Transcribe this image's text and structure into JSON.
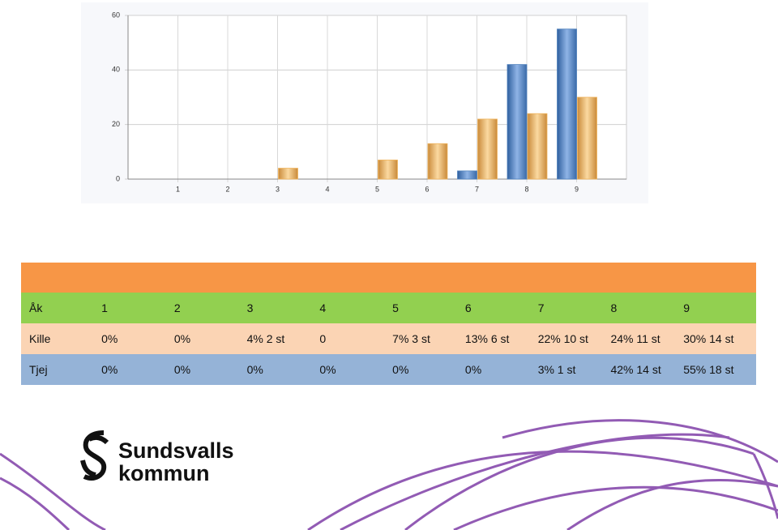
{
  "chart_data": {
    "type": "bar",
    "categories": [
      "1",
      "2",
      "3",
      "4",
      "5",
      "6",
      "7",
      "8",
      "9"
    ],
    "series": [
      {
        "color": "#4f81bd",
        "values": [
          0,
          0,
          0,
          0,
          0,
          0,
          3,
          42,
          55
        ]
      },
      {
        "color": "#f0b45c",
        "values": [
          0,
          0,
          4,
          0,
          7,
          13,
          22,
          24,
          30
        ]
      }
    ],
    "ylim": [
      0,
      60
    ],
    "yticks": [
      0,
      20,
      40,
      60
    ],
    "grid": true
  },
  "table": {
    "header": [
      "Åk",
      "1",
      "2",
      "3",
      "4",
      "5",
      "6",
      "7",
      "8",
      "9"
    ],
    "rows": [
      [
        "Kille",
        "0%",
        "0%",
        "4% 2 st",
        "0",
        "7% 3 st",
        "13% 6 st",
        "22% 10 st",
        "24% 11 st",
        "30% 14 st"
      ],
      [
        "Tjej",
        "0%",
        "0%",
        "0%",
        "0%",
        "0%",
        "0%",
        "3% 1 st",
        "42% 14 st",
        "55% 18 st"
      ]
    ]
  },
  "logo": {
    "line1": "Sundsvalls",
    "line2": "kommun"
  }
}
